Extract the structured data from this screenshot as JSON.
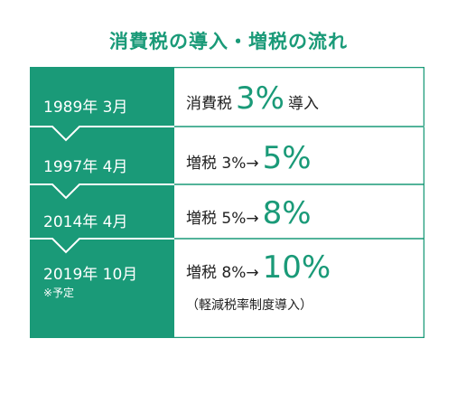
{
  "title": "消費税の導入・増税の流れ",
  "colors": {
    "accent": "#1a9a78",
    "text": "#222222",
    "background": "#ffffff"
  },
  "events": [
    {
      "date": "1989年 3月",
      "prefix": "消費税",
      "highlight": "3%",
      "suffix": "導入"
    },
    {
      "date": "1997年 4月",
      "prefix": "増税 3%→",
      "highlight": "5%",
      "suffix": ""
    },
    {
      "date": "2014年 4月",
      "prefix": "増税 5%→",
      "highlight": "8%",
      "suffix": ""
    },
    {
      "date": "2019年 10月",
      "note": "※予定",
      "prefix": "増税 8%→",
      "highlight": "10%",
      "suffix": "",
      "sub": "（軽減税率制度導入）"
    }
  ]
}
